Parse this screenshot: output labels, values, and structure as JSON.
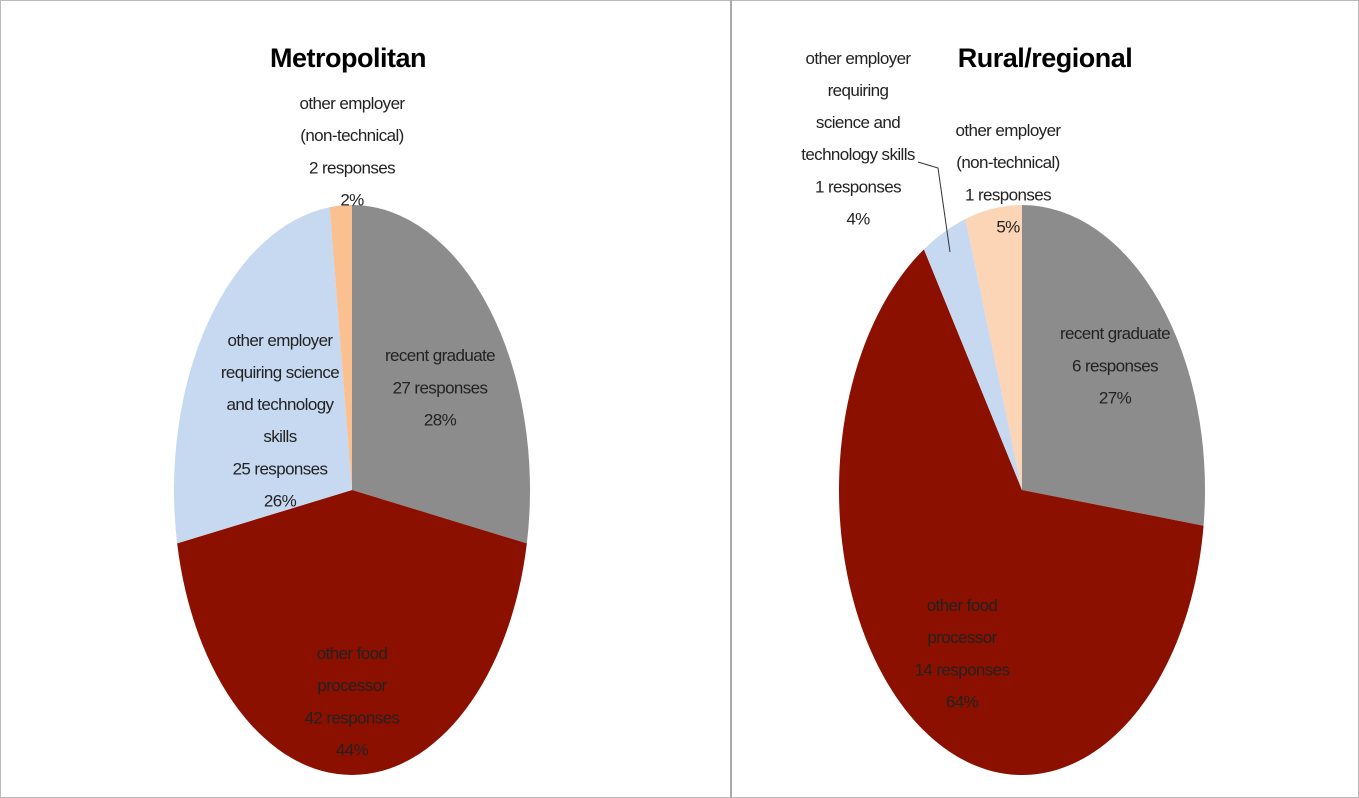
{
  "chart_data": [
    {
      "type": "pie",
      "title": "Metropolitan",
      "categories": [
        "recent graduate",
        "other food processor",
        "other employer requiring science and technology skills",
        "other employer (non-technical)"
      ],
      "values": [
        28,
        44,
        26,
        2
      ],
      "value_labels": [
        "28%",
        "44%",
        "26%",
        "2%"
      ],
      "count_labels": [
        "27 responses",
        "42 responses",
        "25 responses",
        "2 responses"
      ],
      "colors": [
        "#8c8c8c",
        "#8b1000",
        "#c6d9f1",
        "#fac090"
      ]
    },
    {
      "type": "pie",
      "title": "Rural/regional",
      "categories": [
        "recent graduate",
        "other food processor",
        "other employer requiring science and technology skills",
        "other employer (non-technical)"
      ],
      "values": [
        27,
        64,
        4,
        5
      ],
      "value_labels": [
        "27%",
        "64%",
        "4%",
        "5%"
      ],
      "count_labels": [
        "6 responses",
        "14 responses",
        "1 responses",
        "1 responses"
      ],
      "colors": [
        "#8c8c8c",
        "#8b1000",
        "#c6d9f1",
        "#fbd5b5"
      ]
    }
  ]
}
